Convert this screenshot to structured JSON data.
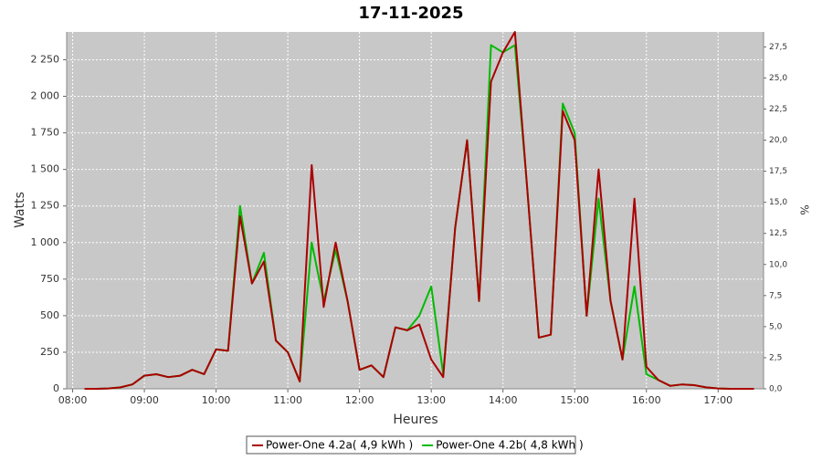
{
  "chart_data": {
    "type": "line",
    "title": "17-11-2025",
    "x_label": "Heures",
    "y_label": "Watts",
    "y2_label": "%",
    "x": [
      "08:10",
      "08:20",
      "08:30",
      "08:40",
      "08:50",
      "09:00",
      "09:10",
      "09:20",
      "09:30",
      "09:40",
      "09:50",
      "10:00",
      "10:10",
      "10:20",
      "10:30",
      "10:40",
      "10:50",
      "11:00",
      "11:10",
      "11:20",
      "11:30",
      "11:40",
      "11:50",
      "12:00",
      "12:10",
      "12:20",
      "12:30",
      "12:40",
      "12:50",
      "13:00",
      "13:10",
      "13:20",
      "13:30",
      "13:40",
      "13:50",
      "14:00",
      "14:10",
      "14:20",
      "14:30",
      "14:40",
      "14:50",
      "15:00",
      "15:10",
      "15:20",
      "15:30",
      "15:40",
      "15:50",
      "16:00",
      "16:10",
      "16:20",
      "16:30",
      "16:40",
      "16:50",
      "17:00",
      "17:10",
      "17:20",
      "17:30"
    ],
    "series": [
      {
        "name": "Power-One 4.2a( 4,9 kWh )",
        "color": "#aa0000",
        "values": [
          0,
          0,
          2,
          10,
          30,
          90,
          100,
          80,
          90,
          130,
          100,
          270,
          260,
          1180,
          720,
          870,
          330,
          250,
          50,
          1530,
          560,
          1000,
          600,
          130,
          160,
          80,
          420,
          400,
          440,
          200,
          80,
          1100,
          1700,
          600,
          2100,
          2300,
          2440,
          1400,
          350,
          370,
          1900,
          1700,
          500,
          1500,
          600,
          200,
          1300,
          150,
          60,
          20,
          30,
          25,
          10,
          2,
          0,
          0,
          0
        ]
      },
      {
        "name": "Power-One 4.2b( 4,8 kWh )",
        "color": "#00bb00",
        "values": [
          0,
          0,
          2,
          10,
          30,
          90,
          100,
          80,
          90,
          130,
          100,
          270,
          260,
          1250,
          720,
          930,
          330,
          250,
          50,
          1000,
          600,
          950,
          600,
          130,
          160,
          80,
          420,
          400,
          500,
          700,
          100,
          1100,
          1700,
          600,
          2350,
          2300,
          2350,
          1400,
          350,
          370,
          1950,
          1750,
          500,
          1300,
          600,
          200,
          700,
          100,
          60,
          20,
          30,
          25,
          10,
          2,
          0,
          0,
          0
        ]
      }
    ],
    "xlim": [
      "07:55",
      "17:38"
    ],
    "xticks": [
      "08:00",
      "09:00",
      "10:00",
      "11:00",
      "12:00",
      "13:00",
      "14:00",
      "15:00",
      "16:00",
      "17:00"
    ],
    "ylim": [
      0,
      2440
    ],
    "yticks": [
      0,
      250,
      500,
      750,
      {
        "value": 1000,
        "label": "1 000"
      },
      {
        "value": 1250,
        "label": "1 250"
      },
      {
        "value": 1500,
        "label": "1 500"
      },
      {
        "value": 1750,
        "label": "1 750"
      },
      {
        "value": 2000,
        "label": "2 000"
      },
      {
        "value": 2250,
        "label": "2 250"
      }
    ],
    "y2lim": [
      0,
      28.7
    ],
    "y2ticks": [
      {
        "value": 0,
        "label": "0,0"
      },
      {
        "value": 2.5,
        "label": "2,5"
      },
      {
        "value": 5,
        "label": "5,0"
      },
      {
        "value": 7.5,
        "label": "7,5"
      },
      {
        "value": 10,
        "label": "10,0"
      },
      {
        "value": 12.5,
        "label": "12,5"
      },
      {
        "value": 15,
        "label": "15,0"
      },
      {
        "value": 17.5,
        "label": "17,5"
      },
      {
        "value": 20,
        "label": "20,0"
      },
      {
        "value": 22.5,
        "label": "22,5"
      },
      {
        "value": 25,
        "label": "25,0"
      },
      {
        "value": 27.5,
        "label": "27,5"
      }
    ],
    "grid": true,
    "legend": "bottom"
  }
}
